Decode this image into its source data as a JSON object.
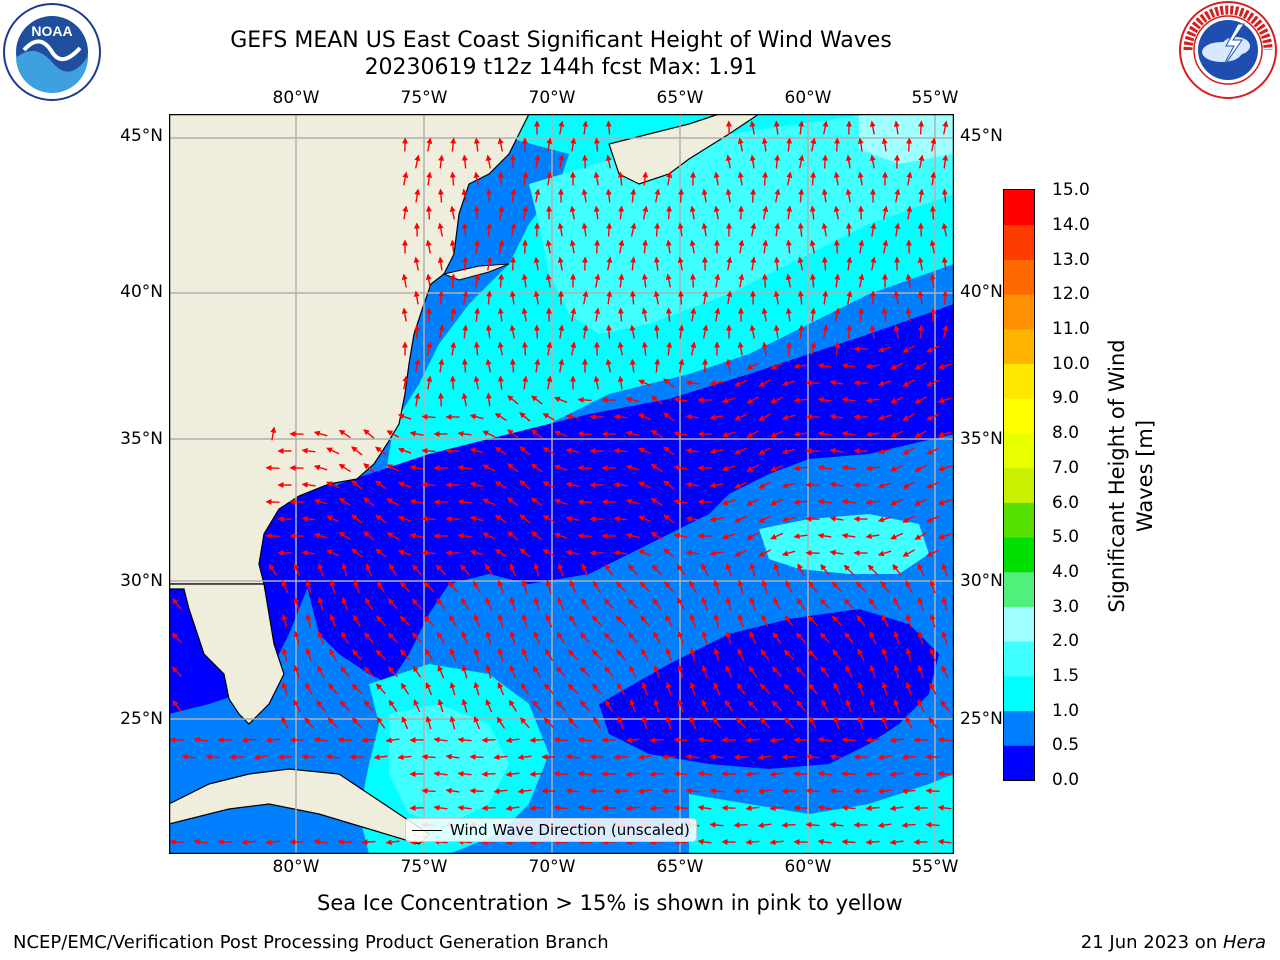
{
  "title": {
    "line1": "GEFS MEAN US East Coast Significant Height of Wind Waves",
    "line2": "20230619 t12z 144h fcst   Max: 1.91"
  },
  "logos": {
    "left": {
      "name": "noaa-logo",
      "text": "NOAA",
      "ring_text": "NATIONAL OCEANIC AND ATMOSPHERIC ADMINISTRATION · U.S. DEPARTMENT OF COMMERCE"
    },
    "right": {
      "name": "nws-logo",
      "ring_text": "NATIONAL WEATHER SERVICE"
    }
  },
  "map": {
    "lon_labels": [
      "80°W",
      "75°W",
      "70°W",
      "65°W",
      "60°W",
      "55°W"
    ],
    "lat_labels": [
      "45°N",
      "40°N",
      "35°N",
      "30°N",
      "25°N"
    ],
    "lon_range": [
      -85,
      -54
    ],
    "lat_range": [
      20.5,
      46
    ],
    "colors": {
      "land": "#efeddc",
      "coast": "#000000",
      "grid": "#b0b0b0",
      "arrow": "#ff0000"
    },
    "legend_label": "Wind Wave Direction (unscaled)"
  },
  "colorbar": {
    "title_line1": "Significant Height of Wind",
    "title_line2": "Waves [m]",
    "ticks": [
      "15.0",
      "14.0",
      "13.0",
      "12.0",
      "11.0",
      "10.0",
      "9.0",
      "8.0",
      "7.0",
      "6.0",
      "5.0",
      "4.0",
      "3.0",
      "2.0",
      "1.5",
      "1.0",
      "0.5",
      "0.0"
    ],
    "bands": [
      {
        "from": 0.0,
        "to": 0.5,
        "color": "#0000ff"
      },
      {
        "from": 0.5,
        "to": 1.0,
        "color": "#0080ff"
      },
      {
        "from": 1.0,
        "to": 1.5,
        "color": "#00ffff"
      },
      {
        "from": 1.5,
        "to": 2.0,
        "color": "#40ffff"
      },
      {
        "from": 2.0,
        "to": 3.0,
        "color": "#a0ffff"
      },
      {
        "from": 3.0,
        "to": 4.0,
        "color": "#50f07a"
      },
      {
        "from": 4.0,
        "to": 5.0,
        "color": "#00e000"
      },
      {
        "from": 5.0,
        "to": 6.0,
        "color": "#55e000"
      },
      {
        "from": 6.0,
        "to": 7.0,
        "color": "#c8f000"
      },
      {
        "from": 7.0,
        "to": 8.0,
        "color": "#e8ff00"
      },
      {
        "from": 8.0,
        "to": 9.0,
        "color": "#ffff00"
      },
      {
        "from": 9.0,
        "to": 10.0,
        "color": "#ffe800"
      },
      {
        "from": 10.0,
        "to": 11.0,
        "color": "#ffb400"
      },
      {
        "from": 11.0,
        "to": 12.0,
        "color": "#ff9000"
      },
      {
        "from": 12.0,
        "to": 13.0,
        "color": "#ff6a00"
      },
      {
        "from": 13.0,
        "to": 14.0,
        "color": "#ff3c00"
      },
      {
        "from": 14.0,
        "to": 15.0,
        "color": "#ff0000"
      }
    ]
  },
  "sea_ice_note": "Sea Ice Concentration > 15% is shown in pink to yellow",
  "footer": {
    "left": "NCEP/EMC/Verification Post Processing Product Generation Branch",
    "right_prefix": "21 Jun 2023 on ",
    "right_host": "Hera"
  }
}
